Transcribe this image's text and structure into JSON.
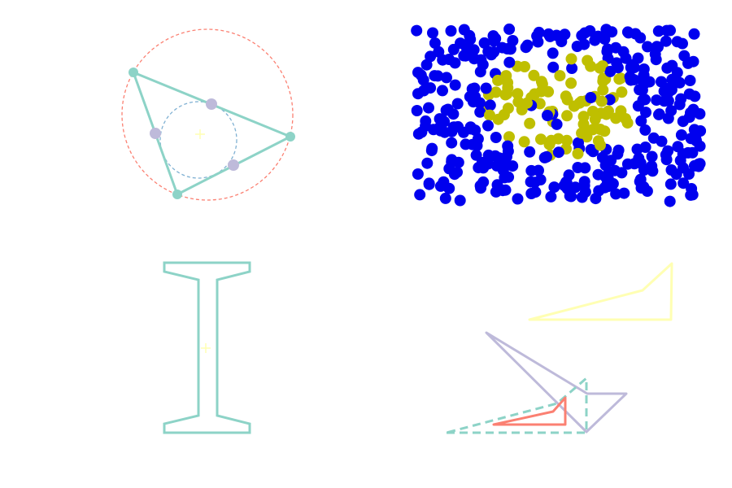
{
  "colors": {
    "teal": "#8dd3c7",
    "lavender": "#bebada",
    "salmon": "#fb8072",
    "steel": "#80b1d3",
    "yellow": "#ffffb3",
    "blue": "#0000ee",
    "olive": "#bfbf00"
  },
  "panels": [
    {
      "id": "triangle-circles",
      "kind": "triangle with circumscribed circle (dashed) and inscribed circle (dashed) with tangent points"
    },
    {
      "id": "dot-cluster",
      "kind": "scatter of dots: outer dots in blue, inner cluster in olive"
    },
    {
      "id": "i-beam",
      "kind": "I-beam cross-section outline with centroid marker"
    },
    {
      "id": "polygon-set",
      "kind": "several overlapping polygons, one dashed"
    }
  ]
}
